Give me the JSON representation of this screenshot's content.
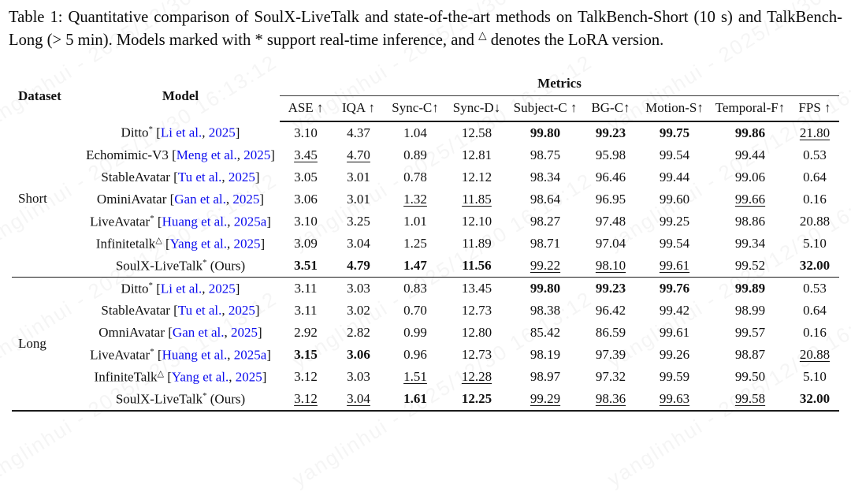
{
  "caption": {
    "part0": "Table 1: Quantitative comparison of SoulX-LiveTalk and state-of-the-art methods on TalkBench-Short (10 s) and TalkBench-Long (> 5 min). Models marked with ",
    "star": "*",
    "part2": " support real-time inference, and ",
    "lora_mark": "△",
    "part3": " denotes the LoRA version."
  },
  "watermark": {
    "text": "yanglinhui - 2025/12/30 16:13:12"
  },
  "colors": {
    "citation_blue": "#0b0bee",
    "text": "#111111",
    "rule": "#1a1a1a"
  },
  "table": {
    "dataset_header": "Dataset",
    "model_header": "Model",
    "metrics_group_header": "Metrics",
    "metric_headers": [
      "ASE ↑",
      "IQA ↑",
      "Sync-C↑",
      "Sync-D↓",
      "Subject-C ↑",
      "BG-C↑",
      "Motion-S↑",
      "Temporal-F↑",
      "FPS ↑"
    ],
    "sections": [
      {
        "dataset": "Short",
        "rows": [
          {
            "model": {
              "name": "Ditto",
              "sup": "*",
              "authors": "Li et al.",
              "year": "2025"
            },
            "cells": [
              {
                "v": "3.10",
                "s": "p"
              },
              {
                "v": "4.37",
                "s": "p"
              },
              {
                "v": "1.04",
                "s": "p"
              },
              {
                "v": "12.58",
                "s": "p"
              },
              {
                "v": "99.80",
                "s": "b"
              },
              {
                "v": "99.23",
                "s": "b"
              },
              {
                "v": "99.75",
                "s": "b"
              },
              {
                "v": "99.86",
                "s": "b"
              },
              {
                "v": "21.80",
                "s": "u"
              }
            ]
          },
          {
            "model": {
              "name": "Echomimic-V3",
              "sup": "",
              "authors": "Meng et al.",
              "year": "2025"
            },
            "cells": [
              {
                "v": "3.45",
                "s": "u"
              },
              {
                "v": "4.70",
                "s": "u"
              },
              {
                "v": "0.89",
                "s": "p"
              },
              {
                "v": "12.81",
                "s": "p"
              },
              {
                "v": "98.75",
                "s": "p"
              },
              {
                "v": "95.98",
                "s": "p"
              },
              {
                "v": "99.54",
                "s": "p"
              },
              {
                "v": "99.44",
                "s": "p"
              },
              {
                "v": "0.53",
                "s": "p"
              }
            ]
          },
          {
            "model": {
              "name": "StableAvatar",
              "sup": "",
              "authors": "Tu et al.",
              "year": "2025"
            },
            "cells": [
              {
                "v": "3.05",
                "s": "p"
              },
              {
                "v": "3.01",
                "s": "p"
              },
              {
                "v": "0.78",
                "s": "p"
              },
              {
                "v": "12.12",
                "s": "p"
              },
              {
                "v": "98.34",
                "s": "p"
              },
              {
                "v": "96.46",
                "s": "p"
              },
              {
                "v": "99.44",
                "s": "p"
              },
              {
                "v": "99.06",
                "s": "p"
              },
              {
                "v": "0.64",
                "s": "p"
              }
            ]
          },
          {
            "model": {
              "name": "OminiAvatar",
              "sup": "",
              "authors": "Gan et al.",
              "year": "2025"
            },
            "cells": [
              {
                "v": "3.06",
                "s": "p"
              },
              {
                "v": "3.01",
                "s": "p"
              },
              {
                "v": "1.32",
                "s": "u"
              },
              {
                "v": "11.85",
                "s": "u"
              },
              {
                "v": "98.64",
                "s": "p"
              },
              {
                "v": "96.95",
                "s": "p"
              },
              {
                "v": "99.60",
                "s": "p"
              },
              {
                "v": "99.66",
                "s": "u"
              },
              {
                "v": "0.16",
                "s": "p"
              }
            ]
          },
          {
            "model": {
              "name": "LiveAvatar",
              "sup": "*",
              "authors": "Huang et al.",
              "year": "2025a"
            },
            "cells": [
              {
                "v": "3.10",
                "s": "p"
              },
              {
                "v": "3.25",
                "s": "p"
              },
              {
                "v": "1.01",
                "s": "p"
              },
              {
                "v": "12.10",
                "s": "p"
              },
              {
                "v": "98.27",
                "s": "p"
              },
              {
                "v": "97.48",
                "s": "p"
              },
              {
                "v": "99.25",
                "s": "p"
              },
              {
                "v": "98.86",
                "s": "p"
              },
              {
                "v": "20.88",
                "s": "p"
              }
            ]
          },
          {
            "model": {
              "name": "Infinitetalk",
              "sup": "△",
              "authors": "Yang et al.",
              "year": "2025"
            },
            "cells": [
              {
                "v": "3.09",
                "s": "p"
              },
              {
                "v": "3.04",
                "s": "p"
              },
              {
                "v": "1.25",
                "s": "p"
              },
              {
                "v": "11.89",
                "s": "p"
              },
              {
                "v": "98.71",
                "s": "p"
              },
              {
                "v": "97.04",
                "s": "p"
              },
              {
                "v": "99.54",
                "s": "p"
              },
              {
                "v": "99.34",
                "s": "p"
              },
              {
                "v": "5.10",
                "s": "p"
              }
            ]
          },
          {
            "model": {
              "name": "SoulX-LiveTalk",
              "sup": "*",
              "suffix": "(Ours)"
            },
            "cells": [
              {
                "v": "3.51",
                "s": "b"
              },
              {
                "v": "4.79",
                "s": "b"
              },
              {
                "v": "1.47",
                "s": "b"
              },
              {
                "v": "11.56",
                "s": "b"
              },
              {
                "v": "99.22",
                "s": "u"
              },
              {
                "v": "98.10",
                "s": "u"
              },
              {
                "v": "99.61",
                "s": "u"
              },
              {
                "v": "99.52",
                "s": "p"
              },
              {
                "v": "32.00",
                "s": "b"
              }
            ]
          }
        ]
      },
      {
        "dataset": "Long",
        "rows": [
          {
            "model": {
              "name": "Ditto",
              "sup": "*",
              "authors": "Li et al.",
              "year": "2025"
            },
            "cells": [
              {
                "v": "3.11",
                "s": "p"
              },
              {
                "v": "3.03",
                "s": "p"
              },
              {
                "v": "0.83",
                "s": "p"
              },
              {
                "v": "13.45",
                "s": "p"
              },
              {
                "v": "99.80",
                "s": "b"
              },
              {
                "v": "99.23",
                "s": "b"
              },
              {
                "v": "99.76",
                "s": "b"
              },
              {
                "v": "99.89",
                "s": "b"
              },
              {
                "v": "0.53",
                "s": "p"
              }
            ]
          },
          {
            "model": {
              "name": "StableAvatar",
              "sup": "",
              "authors": "Tu et al.",
              "year": "2025"
            },
            "cells": [
              {
                "v": "3.11",
                "s": "p"
              },
              {
                "v": "3.02",
                "s": "p"
              },
              {
                "v": "0.70",
                "s": "p"
              },
              {
                "v": "12.73",
                "s": "p"
              },
              {
                "v": "98.38",
                "s": "p"
              },
              {
                "v": "96.42",
                "s": "p"
              },
              {
                "v": "99.42",
                "s": "p"
              },
              {
                "v": "98.99",
                "s": "p"
              },
              {
                "v": "0.64",
                "s": "p"
              }
            ]
          },
          {
            "model": {
              "name": "OmniAvatar",
              "sup": "",
              "authors": "Gan et al.",
              "year": "2025"
            },
            "cells": [
              {
                "v": "2.92",
                "s": "p"
              },
              {
                "v": "2.82",
                "s": "p"
              },
              {
                "v": "0.99",
                "s": "p"
              },
              {
                "v": "12.80",
                "s": "p"
              },
              {
                "v": "85.42",
                "s": "p"
              },
              {
                "v": "86.59",
                "s": "p"
              },
              {
                "v": "99.61",
                "s": "p"
              },
              {
                "v": "99.57",
                "s": "p"
              },
              {
                "v": "0.16",
                "s": "p"
              }
            ]
          },
          {
            "model": {
              "name": "LiveAvatar",
              "sup": "*",
              "authors": "Huang et al.",
              "year": "2025a"
            },
            "cells": [
              {
                "v": "3.15",
                "s": "b"
              },
              {
                "v": "3.06",
                "s": "b"
              },
              {
                "v": "0.96",
                "s": "p"
              },
              {
                "v": "12.73",
                "s": "p"
              },
              {
                "v": "98.19",
                "s": "p"
              },
              {
                "v": "97.39",
                "s": "p"
              },
              {
                "v": "99.26",
                "s": "p"
              },
              {
                "v": "98.87",
                "s": "p"
              },
              {
                "v": "20.88",
                "s": "u"
              }
            ]
          },
          {
            "model": {
              "name": "InfiniteTalk",
              "sup": "△",
              "authors": "Yang et al.",
              "year": "2025"
            },
            "cells": [
              {
                "v": "3.12",
                "s": "p"
              },
              {
                "v": "3.03",
                "s": "p"
              },
              {
                "v": "1.51",
                "s": "u"
              },
              {
                "v": "12.28",
                "s": "u"
              },
              {
                "v": "98.97",
                "s": "p"
              },
              {
                "v": "97.32",
                "s": "p"
              },
              {
                "v": "99.59",
                "s": "p"
              },
              {
                "v": "99.50",
                "s": "p"
              },
              {
                "v": "5.10",
                "s": "p"
              }
            ]
          },
          {
            "model": {
              "name": "SoulX-LiveTalk",
              "sup": "*",
              "suffix": "(Ours)"
            },
            "cells": [
              {
                "v": "3.12",
                "s": "u"
              },
              {
                "v": "3.04",
                "s": "u"
              },
              {
                "v": "1.61",
                "s": "b"
              },
              {
                "v": "12.25",
                "s": "b"
              },
              {
                "v": "99.29",
                "s": "u"
              },
              {
                "v": "98.36",
                "s": "u"
              },
              {
                "v": "99.63",
                "s": "u"
              },
              {
                "v": "99.58",
                "s": "u"
              },
              {
                "v": "32.00",
                "s": "b"
              }
            ]
          }
        ]
      }
    ]
  }
}
